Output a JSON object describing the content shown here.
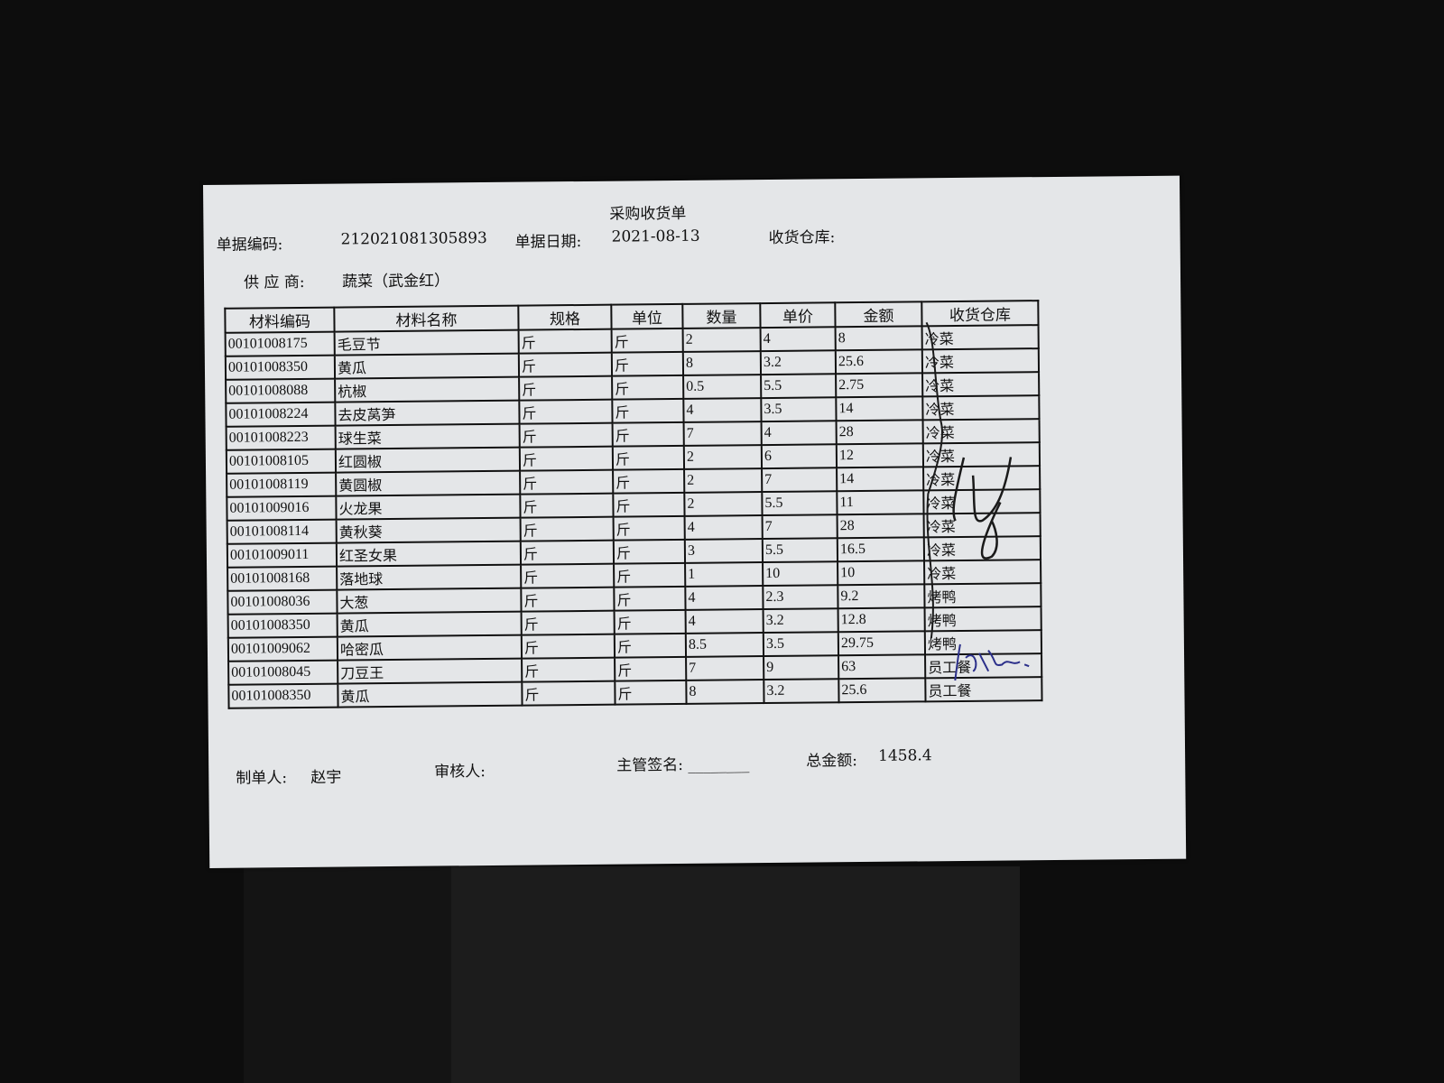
{
  "document": {
    "title": "采购收货单",
    "bill_no_label": "单据编码:",
    "bill_no": "212021081305893",
    "date_label": "单据日期:",
    "date": "2021-08-13",
    "warehouse_label": "收货仓库:",
    "supplier_label": "供 应 商:",
    "supplier": "蔬菜（武金红）",
    "columns": [
      "材料编码",
      "材料名称",
      "规格",
      "单位",
      "数量",
      "单价",
      "金额",
      "收货仓库"
    ],
    "rows": [
      [
        "00101008175",
        "毛豆节",
        "斤",
        "斤",
        "2",
        "4",
        "8",
        "冷菜"
      ],
      [
        "00101008350",
        "黄瓜",
        "斤",
        "斤",
        "8",
        "3.2",
        "25.6",
        "冷菜"
      ],
      [
        "00101008088",
        "杭椒",
        "斤",
        "斤",
        "0.5",
        "5.5",
        "2.75",
        "冷菜"
      ],
      [
        "00101008224",
        "去皮莴笋",
        "斤",
        "斤",
        "4",
        "3.5",
        "14",
        "冷菜"
      ],
      [
        "00101008223",
        "球生菜",
        "斤",
        "斤",
        "7",
        "4",
        "28",
        "冷菜"
      ],
      [
        "00101008105",
        "红圆椒",
        "斤",
        "斤",
        "2",
        "6",
        "12",
        "冷菜"
      ],
      [
        "00101008119",
        "黄圆椒",
        "斤",
        "斤",
        "2",
        "7",
        "14",
        "冷菜"
      ],
      [
        "00101009016",
        "火龙果",
        "斤",
        "斤",
        "2",
        "5.5",
        "11",
        "冷菜"
      ],
      [
        "00101008114",
        "黄秋葵",
        "斤",
        "斤",
        "4",
        "7",
        "28",
        "冷菜"
      ],
      [
        "00101009011",
        "红圣女果",
        "斤",
        "斤",
        "3",
        "5.5",
        "16.5",
        "冷菜"
      ],
      [
        "00101008168",
        "落地球",
        "斤",
        "斤",
        "1",
        "10",
        "10",
        "冷菜"
      ],
      [
        "00101008036",
        "大葱",
        "斤",
        "斤",
        "4",
        "2.3",
        "9.2",
        "烤鸭"
      ],
      [
        "00101008350",
        "黄瓜",
        "斤",
        "斤",
        "4",
        "3.2",
        "12.8",
        "烤鸭"
      ],
      [
        "00101009062",
        "哈密瓜",
        "斤",
        "斤",
        "8.5",
        "3.5",
        "29.75",
        "烤鸭"
      ],
      [
        "00101008045",
        "刀豆王",
        "斤",
        "斤",
        "7",
        "9",
        "63",
        "员工餐"
      ],
      [
        "00101008350",
        "黄瓜",
        "斤",
        "斤",
        "8",
        "3.2",
        "25.6",
        "员工餐"
      ]
    ],
    "maker_label": "制单人:",
    "maker": "赵宇",
    "reviewer_label": "审核人:",
    "supervisor_label": "主管签名: ________",
    "total_label": "总金额:",
    "total": "1458.4"
  }
}
